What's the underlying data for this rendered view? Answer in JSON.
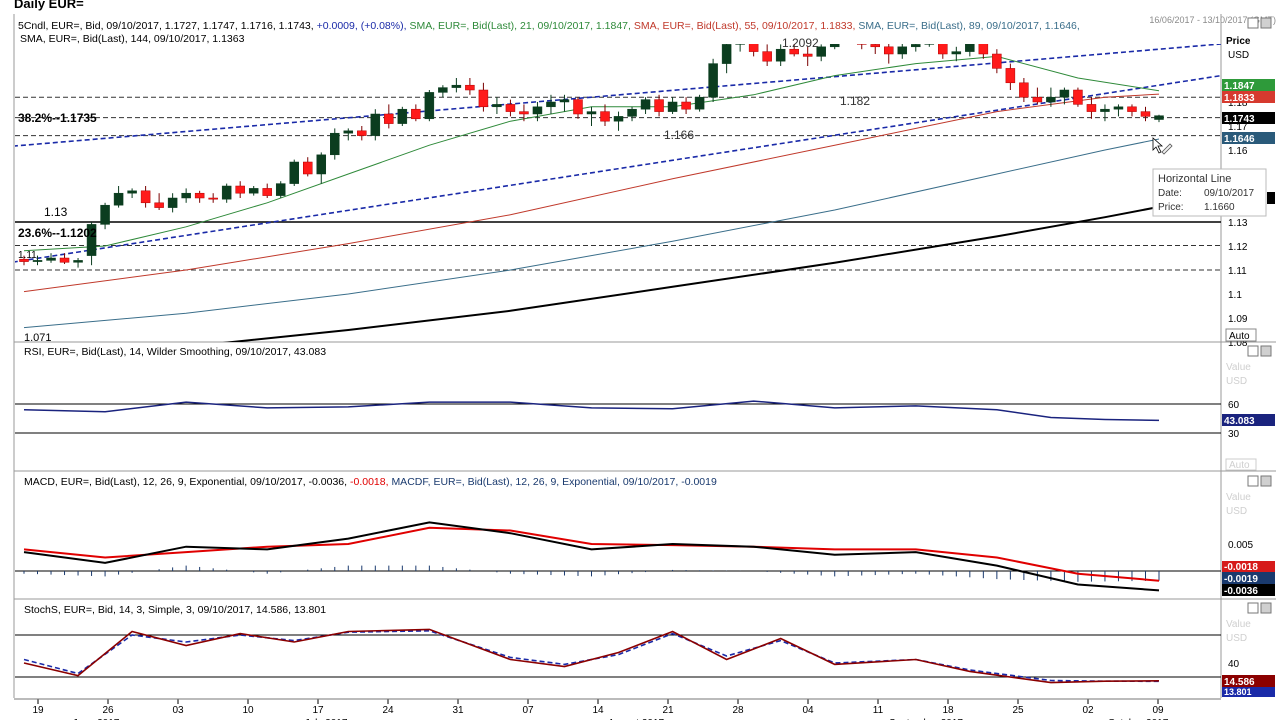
{
  "header": {
    "title": "Daily EUR=",
    "date_range": "16/06/2017 - 13/10/2017 (GMT)"
  },
  "colors": {
    "up_candle": "#0b3d1f",
    "down_candle": "#ff1a1a",
    "sma21": "#2f8a3a",
    "sma55": "#c0392b",
    "sma89": "#3a6e8a",
    "sma144": "#000000",
    "trend_channel": "#1a2aa8",
    "rsi": "#1a237e",
    "macd": "#000000",
    "macd_signal": "#e00000",
    "stoch_k": "#8b0000",
    "stoch_d": "#1a2aa8"
  },
  "price_panel": {
    "legend_line1": [
      {
        "text": "5",
        "color": "#000000"
      },
      {
        "text": "Cndl, EUR=, Bid, 09/10/2017, 1.1727, 1.1747, 1.1716, 1.1743, ",
        "color": "#000000"
      },
      {
        "text": "+0.0009, (+0.08%), ",
        "color": "#1a2aa8"
      },
      {
        "text": "SMA, EUR=, Bid(Last), 21, 09/10/2017, 1.1847, ",
        "color": "#2f8a3a"
      },
      {
        "text": "SMA, EUR=, Bid(Last), 55, 09/10/2017, 1.1833, ",
        "color": "#c0392b"
      },
      {
        "text": "SMA, EUR=, Bid(Last), 89, 09/10/2017, 1.1646, ",
        "color": "#3a6e8a"
      }
    ],
    "legend_line2": "SMA, EUR=, Bid(Last), 144, 09/10/2017, 1.1363",
    "axis_title_1": "Price",
    "axis_title_2": "USD",
    "auto_label": "Auto",
    "y_ticks": [
      "1.18",
      "1.17",
      "1.16",
      "1.15",
      "1.13",
      "1.12",
      "1.11",
      "1.1",
      "1.09",
      "1.08"
    ],
    "value_tags": {
      "sma21": "1.1847",
      "sma55": "1.1833",
      "close": "1.1743",
      "sma89": "1.1646"
    },
    "annotations": {
      "level_2092": "1.2092",
      "fib_382": "38.2%--1.1735",
      "level_182": "1.182",
      "level_166": "1.166",
      "level_113": "1.13",
      "fib_236": "23.6%--1.1202",
      "level_111": "1.11",
      "level_1071": "1.071"
    },
    "tooltip": {
      "title": "Horizontal Line",
      "date_label": "Date:",
      "date_value": "09/10/2017",
      "price_label": "Price:",
      "price_value": "1.1660"
    }
  },
  "rsi_panel": {
    "legend": "RSI, EUR=, Bid(Last), 14, Wilder Smoothing, 09/10/2017, 43.083",
    "value_label": "Value",
    "unit_label": "USD",
    "auto_label": "Auto",
    "ticks": [
      "60",
      "30"
    ],
    "current": "43.083"
  },
  "macd_panel": {
    "legend": [
      {
        "text": "MACD, EUR=, Bid(Last), 12, 26, 9, Exponential, 09/10/2017, -0.0036, ",
        "color": "#000000"
      },
      {
        "text": "-0.0018, ",
        "color": "#e00000"
      },
      {
        "text": "MACDF, EUR=, Bid(Last), 12, 26, 9, Exponential, 09/10/2017, -0.0019",
        "color": "#1a3a6e"
      }
    ],
    "value_label": "Value",
    "unit_label": "USD",
    "ticks": [
      "0.005"
    ],
    "tags": {
      "signal": "-0.0018",
      "hist": "-0.0019",
      "macd": "-0.0036"
    }
  },
  "stoch_panel": {
    "legend": "StochS, EUR=, Bid, 14, 3, Simple, 3, 09/10/2017, 14.586, 13.801",
    "value_label": "Value",
    "unit_label": "USD",
    "ticks": [
      "40"
    ],
    "tags": {
      "k": "14.586",
      "d": "13.801"
    }
  },
  "x_axis": {
    "day_labels": [
      "19",
      "26",
      "03",
      "10",
      "17",
      "24",
      "31",
      "07",
      "14",
      "21",
      "28",
      "04",
      "11",
      "18",
      "25",
      "02",
      "09"
    ],
    "month_labels": [
      "June 2017",
      "July 2017",
      "August 2017",
      "September 2017",
      "October 2017"
    ]
  },
  "chart_data": {
    "type": "candlestick",
    "instrument": "EUR=",
    "interval": "Daily",
    "x_range": [
      "19/06/2017",
      "09/10/2017"
    ],
    "ylim": [
      1.07,
      1.21
    ],
    "candles": [
      [
        1.1145,
        1.116,
        1.112,
        1.1135
      ],
      [
        1.1135,
        1.116,
        1.112,
        1.114
      ],
      [
        1.114,
        1.117,
        1.113,
        1.115
      ],
      [
        1.115,
        1.117,
        1.1125,
        1.1132
      ],
      [
        1.1132,
        1.115,
        1.111,
        1.114
      ],
      [
        1.116,
        1.13,
        1.112,
        1.129
      ],
      [
        1.129,
        1.138,
        1.127,
        1.137
      ],
      [
        1.137,
        1.145,
        1.136,
        1.142
      ],
      [
        1.142,
        1.144,
        1.14,
        1.143
      ],
      [
        1.143,
        1.145,
        1.136,
        1.138
      ],
      [
        1.138,
        1.142,
        1.135,
        1.136
      ],
      [
        1.136,
        1.142,
        1.134,
        1.14
      ],
      [
        1.14,
        1.144,
        1.138,
        1.142
      ],
      [
        1.142,
        1.143,
        1.138,
        1.14
      ],
      [
        1.14,
        1.142,
        1.138,
        1.1395
      ],
      [
        1.1395,
        1.146,
        1.138,
        1.145
      ],
      [
        1.145,
        1.147,
        1.14,
        1.142
      ],
      [
        1.142,
        1.145,
        1.141,
        1.144
      ],
      [
        1.144,
        1.146,
        1.14,
        1.141
      ],
      [
        1.141,
        1.147,
        1.14,
        1.146
      ],
      [
        1.146,
        1.156,
        1.145,
        1.155
      ],
      [
        1.155,
        1.157,
        1.149,
        1.15
      ],
      [
        1.15,
        1.159,
        1.146,
        1.158
      ],
      [
        1.158,
        1.169,
        1.156,
        1.167
      ],
      [
        1.167,
        1.169,
        1.164,
        1.168
      ],
      [
        1.168,
        1.17,
        1.164,
        1.166
      ],
      [
        1.166,
        1.177,
        1.164,
        1.175
      ],
      [
        1.175,
        1.179,
        1.169,
        1.171
      ],
      [
        1.171,
        1.178,
        1.17,
        1.177
      ],
      [
        1.177,
        1.179,
        1.172,
        1.173
      ],
      [
        1.173,
        1.185,
        1.172,
        1.184
      ],
      [
        1.184,
        1.187,
        1.182,
        1.186
      ],
      [
        1.186,
        1.19,
        1.184,
        1.187
      ],
      [
        1.187,
        1.19,
        1.183,
        1.185
      ],
      [
        1.185,
        1.188,
        1.176,
        1.178
      ],
      [
        1.178,
        1.182,
        1.175,
        1.179
      ],
      [
        1.179,
        1.181,
        1.174,
        1.176
      ],
      [
        1.176,
        1.179,
        1.172,
        1.175
      ],
      [
        1.175,
        1.18,
        1.172,
        1.178
      ],
      [
        1.178,
        1.183,
        1.175,
        1.18
      ],
      [
        1.18,
        1.183,
        1.176,
        1.181
      ],
      [
        1.181,
        1.182,
        1.173,
        1.175
      ],
      [
        1.175,
        1.178,
        1.17,
        1.176
      ],
      [
        1.176,
        1.179,
        1.17,
        1.172
      ],
      [
        1.172,
        1.176,
        1.168,
        1.174
      ],
      [
        1.174,
        1.178,
        1.172,
        1.177
      ],
      [
        1.177,
        1.182,
        1.175,
        1.181
      ],
      [
        1.181,
        1.183,
        1.174,
        1.176
      ],
      [
        1.176,
        1.182,
        1.175,
        1.18
      ],
      [
        1.18,
        1.182,
        1.175,
        1.177
      ],
      [
        1.177,
        1.183,
        1.176,
        1.182
      ],
      [
        1.182,
        1.198,
        1.18,
        1.196
      ],
      [
        1.196,
        1.207,
        1.192,
        1.204
      ],
      [
        1.204,
        1.206,
        1.201,
        1.205
      ],
      [
        1.205,
        1.207,
        1.199,
        1.201
      ],
      [
        1.201,
        1.204,
        1.195,
        1.197
      ],
      [
        1.197,
        1.204,
        1.195,
        1.202
      ],
      [
        1.202,
        1.206,
        1.199,
        1.2
      ],
      [
        1.2,
        1.203,
        1.195,
        1.199
      ],
      [
        1.199,
        1.204,
        1.197,
        1.203
      ],
      [
        1.203,
        1.211,
        1.202,
        1.21
      ],
      [
        1.21,
        1.215,
        1.206,
        1.208
      ],
      [
        1.208,
        1.212,
        1.202,
        1.204
      ],
      [
        1.204,
        1.208,
        1.2,
        1.203
      ],
      [
        1.203,
        1.206,
        1.196,
        1.2
      ],
      [
        1.2,
        1.205,
        1.198,
        1.203
      ],
      [
        1.203,
        1.208,
        1.201,
        1.204
      ],
      [
        1.204,
        1.209,
        1.203,
        1.206
      ],
      [
        1.206,
        1.209,
        1.198,
        1.2
      ],
      [
        1.2,
        1.203,
        1.197,
        1.201
      ],
      [
        1.201,
        1.208,
        1.199,
        1.206
      ],
      [
        1.206,
        1.208,
        1.198,
        1.2
      ],
      [
        1.2,
        1.202,
        1.192,
        1.194
      ],
      [
        1.194,
        1.196,
        1.185,
        1.188
      ],
      [
        1.188,
        1.19,
        1.18,
        1.182
      ],
      [
        1.182,
        1.186,
        1.179,
        1.18
      ],
      [
        1.18,
        1.186,
        1.178,
        1.182
      ],
      [
        1.182,
        1.186,
        1.179,
        1.185
      ],
      [
        1.185,
        1.186,
        1.178,
        1.179
      ],
      [
        1.179,
        1.182,
        1.173,
        1.176
      ],
      [
        1.176,
        1.179,
        1.172,
        1.177
      ],
      [
        1.177,
        1.179,
        1.174,
        1.178
      ],
      [
        1.178,
        1.179,
        1.174,
        1.176
      ],
      [
        1.176,
        1.178,
        1.172,
        1.174
      ],
      [
        1.1727,
        1.1747,
        1.1716,
        1.1743
      ]
    ],
    "trend_channel": {
      "upper": [
        [
          0,
          1.162
        ],
        [
          84,
          1.202
        ]
      ],
      "lower": [
        [
          0,
          1.114
        ],
        [
          84,
          1.187
        ]
      ]
    },
    "horizontal_lines": {
      "resistance": 1.2092,
      "fib_382": 1.1735,
      "support_166": 1.166,
      "level_113": 1.13,
      "fib_236": 1.1202,
      "level_111": 1.11
    },
    "sma": {
      "21": [
        [
          0,
          1.118
        ],
        [
          6,
          1.12
        ],
        [
          12,
          1.128
        ],
        [
          18,
          1.138
        ],
        [
          24,
          1.15
        ],
        [
          30,
          1.162
        ],
        [
          36,
          1.172
        ],
        [
          42,
          1.178
        ],
        [
          48,
          1.178
        ],
        [
          54,
          1.183
        ],
        [
          60,
          1.191
        ],
        [
          66,
          1.196
        ],
        [
          72,
          1.199
        ],
        [
          78,
          1.19
        ],
        [
          84,
          1.1847
        ]
      ],
      "55": [
        [
          0,
          1.101
        ],
        [
          12,
          1.11
        ],
        [
          24,
          1.121
        ],
        [
          36,
          1.133
        ],
        [
          48,
          1.148
        ],
        [
          60,
          1.162
        ],
        [
          72,
          1.176
        ],
        [
          80,
          1.182
        ],
        [
          84,
          1.1833
        ]
      ],
      "89": [
        [
          0,
          1.086
        ],
        [
          12,
          1.092
        ],
        [
          24,
          1.1
        ],
        [
          36,
          1.11
        ],
        [
          48,
          1.122
        ],
        [
          60,
          1.135
        ],
        [
          72,
          1.15
        ],
        [
          80,
          1.16
        ],
        [
          84,
          1.1646
        ]
      ],
      "144": [
        [
          0,
          1.073
        ],
        [
          12,
          1.078
        ],
        [
          24,
          1.085
        ],
        [
          36,
          1.093
        ],
        [
          48,
          1.103
        ],
        [
          60,
          1.113
        ],
        [
          72,
          1.124
        ],
        [
          80,
          1.132
        ],
        [
          84,
          1.1363
        ]
      ]
    },
    "rsi": [
      [
        0,
        54
      ],
      [
        6,
        52
      ],
      [
        12,
        62
      ],
      [
        18,
        56
      ],
      [
        24,
        57
      ],
      [
        30,
        62
      ],
      [
        36,
        62
      ],
      [
        42,
        56
      ],
      [
        48,
        55
      ],
      [
        54,
        63
      ],
      [
        60,
        56
      ],
      [
        66,
        58
      ],
      [
        72,
        54
      ],
      [
        76,
        46
      ],
      [
        80,
        44
      ],
      [
        84,
        43.083
      ]
    ],
    "macd": {
      "macd": [
        [
          0,
          0.0035
        ],
        [
          6,
          0.0015
        ],
        [
          12,
          0.0045
        ],
        [
          18,
          0.004
        ],
        [
          24,
          0.006
        ],
        [
          30,
          0.009
        ],
        [
          36,
          0.007
        ],
        [
          42,
          0.004
        ],
        [
          48,
          0.005
        ],
        [
          54,
          0.0045
        ],
        [
          60,
          0.003
        ],
        [
          66,
          0.0035
        ],
        [
          72,
          0.001
        ],
        [
          78,
          -0.0025
        ],
        [
          84,
          -0.0036
        ]
      ],
      "signal": [
        [
          0,
          0.004
        ],
        [
          6,
          0.0025
        ],
        [
          12,
          0.0035
        ],
        [
          18,
          0.0045
        ],
        [
          24,
          0.005
        ],
        [
          30,
          0.008
        ],
        [
          36,
          0.0075
        ],
        [
          42,
          0.005
        ],
        [
          48,
          0.0048
        ],
        [
          54,
          0.0045
        ],
        [
          60,
          0.004
        ],
        [
          66,
          0.004
        ],
        [
          72,
          0.0025
        ],
        [
          78,
          -0.0005
        ],
        [
          84,
          -0.0018
        ]
      ]
    },
    "stoch": {
      "k": [
        [
          0,
          40
        ],
        [
          4,
          22
        ],
        [
          8,
          85
        ],
        [
          12,
          65
        ],
        [
          16,
          82
        ],
        [
          20,
          70
        ],
        [
          24,
          85
        ],
        [
          30,
          88
        ],
        [
          36,
          45
        ],
        [
          40,
          35
        ],
        [
          44,
          55
        ],
        [
          48,
          85
        ],
        [
          52,
          45
        ],
        [
          56,
          75
        ],
        [
          60,
          38
        ],
        [
          66,
          45
        ],
        [
          70,
          28
        ],
        [
          76,
          12
        ],
        [
          80,
          14
        ],
        [
          84,
          14.586
        ]
      ],
      "d": [
        [
          0,
          45
        ],
        [
          4,
          25
        ],
        [
          8,
          80
        ],
        [
          12,
          70
        ],
        [
          16,
          80
        ],
        [
          20,
          72
        ],
        [
          24,
          84
        ],
        [
          30,
          86
        ],
        [
          36,
          48
        ],
        [
          40,
          38
        ],
        [
          44,
          52
        ],
        [
          48,
          82
        ],
        [
          52,
          50
        ],
        [
          56,
          72
        ],
        [
          60,
          40
        ],
        [
          66,
          45
        ],
        [
          70,
          30
        ],
        [
          76,
          15
        ],
        [
          80,
          14
        ],
        [
          84,
          13.801
        ]
      ]
    }
  }
}
